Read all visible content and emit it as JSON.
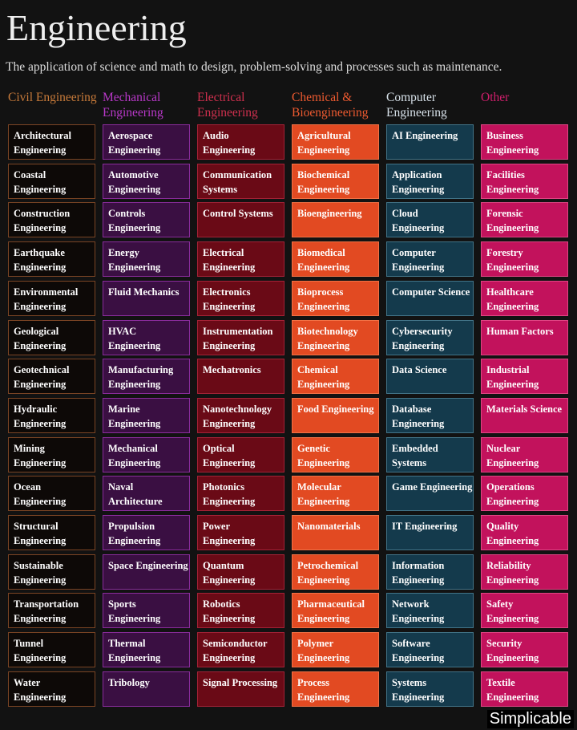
{
  "title": "Engineering",
  "subtitle": "The application of science and math to design, problem-solving and processes such as maintenance.",
  "columns": [
    {
      "header": "Civil Engineering",
      "items": [
        "Architectural Engineering",
        "Coastal Engineering",
        "Construction Engineering",
        "Earthquake Engineering",
        "Environmental Engineering",
        "Geological Engineering",
        "Geotechnical Engineering",
        "Hydraulic Engineering",
        "Mining Engineering",
        "Ocean Engineering",
        "Structural Engineering",
        "Sustainable Engineering",
        "Transportation Engineering",
        "Tunnel Engineering",
        "Water Engineering"
      ]
    },
    {
      "header": "Mechanical Engineering",
      "items": [
        "Aerospace Engineering",
        "Automotive Engineering",
        "Controls Engineering",
        "Energy Engineering",
        "Fluid Mechanics",
        "HVAC Engineering",
        "Manufacturing Engineering",
        "Marine Engineering",
        "Mechanical Engineering",
        "Naval Architecture",
        "Propulsion Engineering",
        "Space Engineering",
        "Sports Engineering",
        "Thermal Engineering",
        "Tribology"
      ]
    },
    {
      "header": "Electrical Engineering",
      "items": [
        "Audio Engineering",
        "Communication Systems",
        "Control Systems",
        "Electrical Engineering",
        "Electronics Engineering",
        "Instrumentation Engineering",
        "Mechatronics",
        "Nanotechnology Engineering",
        "Optical Engineering",
        "Photonics Engineering",
        "Power Engineering",
        "Quantum Engineering",
        "Robotics Engineering",
        "Semiconductor Engineering",
        "Signal Processing"
      ]
    },
    {
      "header": "Chemical & Bioengineering",
      "items": [
        "Agricultural Engineering",
        "Biochemical Engineering",
        "Bioengineering",
        "Biomedical Engineering",
        "Bioprocess Engineering",
        "Biotechnology Engineering",
        "Chemical Engineering",
        "Food Engineering",
        "Genetic Engineering",
        "Molecular Engineering",
        "Nanomaterials",
        "Petrochemical Engineering",
        "Pharmaceutical Engineering",
        "Polymer Engineering",
        "Process Engineering"
      ]
    },
    {
      "header": "Computer Engineering",
      "items": [
        "AI Engineering",
        "Application Engineering",
        "Cloud Engineering",
        "Computer Engineering",
        "Computer Science",
        "Cybersecurity Engineering",
        "Data Science",
        "Database Engineering",
        "Embedded Systems",
        "Game Engineering",
        "IT Engineering",
        "Information Engineering",
        "Network Engineering",
        "Software Engineering",
        "Systems Engineering"
      ]
    },
    {
      "header": "Other",
      "items": [
        "Business Engineering",
        "Facilities Engineering",
        "Forensic Engineering",
        "Forestry Engineering",
        "Healthcare Engineering",
        "Human Factors",
        "Industrial Engineering",
        "Materials Science",
        "Nuclear Engineering",
        "Operations Engineering",
        "Quality Engineering",
        "Reliability Engineering",
        "Safety Engineering",
        "Security Engineering",
        "Textile Engineering"
      ]
    }
  ],
  "watermark": "Simplicable"
}
